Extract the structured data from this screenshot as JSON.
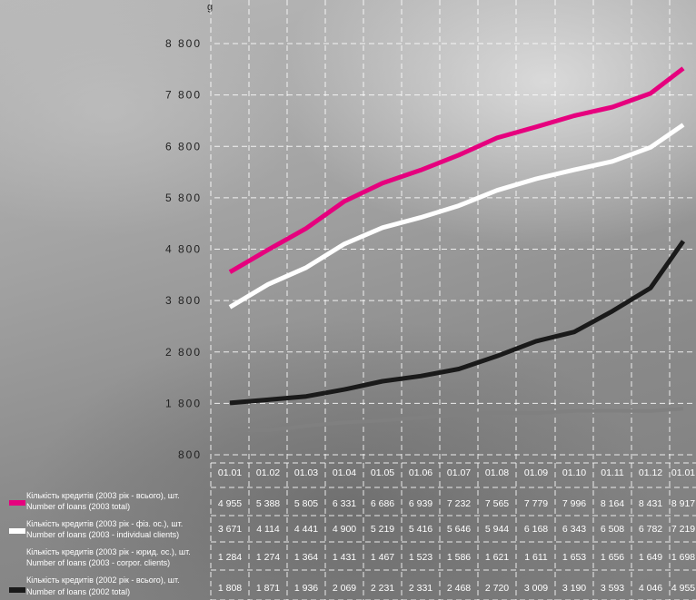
{
  "partial_title": "g",
  "chart_data": {
    "type": "line",
    "x": [
      "01.01",
      "01.02",
      "01.03",
      "01.04",
      "01.05",
      "01.06",
      "01.07",
      "01.08",
      "01.09",
      "01.10",
      "01.11",
      "01.12",
      "01.01"
    ],
    "y_ticks": [
      "8 800",
      "7 800",
      "6 800",
      "5 800",
      "4 800",
      "3 800",
      "2 800",
      "1 800",
      "800"
    ],
    "ylim": [
      800,
      8800
    ],
    "grid": true,
    "series": [
      {
        "name_ua": "Кількість кредитів (2003 рік - всього), шт.",
        "name_en": "Number of loans (2003 total)",
        "color": "#e6007e",
        "values": [
          4955,
          5388,
          5805,
          6331,
          6686,
          6939,
          7232,
          7565,
          7779,
          7996,
          8164,
          8431,
          8917
        ],
        "labels": [
          "4 955",
          "5 388",
          "5 805",
          "6 331",
          "6 686",
          "6 939",
          "7 232",
          "7 565",
          "7 779",
          "7 996",
          "8 164",
          "8 431",
          "8 917"
        ],
        "plot_offset": -600
      },
      {
        "name_ua": "Кількість кредитів (2003 рік - фіз. ос.), шт.",
        "name_en": "Number of loans (2003 - individual clients)",
        "color": "#ffffff",
        "values": [
          3671,
          4114,
          4441,
          4900,
          5219,
          5416,
          5646,
          5944,
          6168,
          6343,
          6508,
          6782,
          7219
        ],
        "labels": [
          "3 671",
          "4 114",
          "4 441",
          "4 900",
          "5 219",
          "5 416",
          "5 646",
          "5 944",
          "6 168",
          "6 343",
          "6 508",
          "6 782",
          "7 219"
        ],
        "plot_offset": 0
      },
      {
        "name_ua": "Кількість кредитів (2003 рік - юрид. ос.), шт.",
        "name_en": "Number of loans (2003 - corpor. clients)",
        "color": "#808080",
        "values": [
          1284,
          1274,
          1364,
          1431,
          1467,
          1523,
          1586,
          1621,
          1611,
          1653,
          1656,
          1649,
          1698
        ],
        "labels": [
          "1 284",
          "1 274",
          "1 364",
          "1 431",
          "1 467",
          "1 523",
          "1 586",
          "1 621",
          "1 611",
          "1 653",
          "1 656",
          "1 649",
          "1 698"
        ],
        "plot_offset": 0
      },
      {
        "name_ua": "Кількість кредитів (2002 рік - всього), шт.",
        "name_en": "Number of loans (2002 total)",
        "color": "#1a1a1a",
        "values": [
          1808,
          1871,
          1936,
          2069,
          2231,
          2331,
          2468,
          2720,
          3009,
          3190,
          3593,
          4046,
          4955
        ],
        "labels": [
          "1 808",
          "1 871",
          "1 936",
          "2 069",
          "2 231",
          "2 331",
          "2 468",
          "2 720",
          "3 009",
          "3 190",
          "3 593",
          "4 046",
          "4 955"
        ],
        "plot_offset": 0
      }
    ]
  }
}
